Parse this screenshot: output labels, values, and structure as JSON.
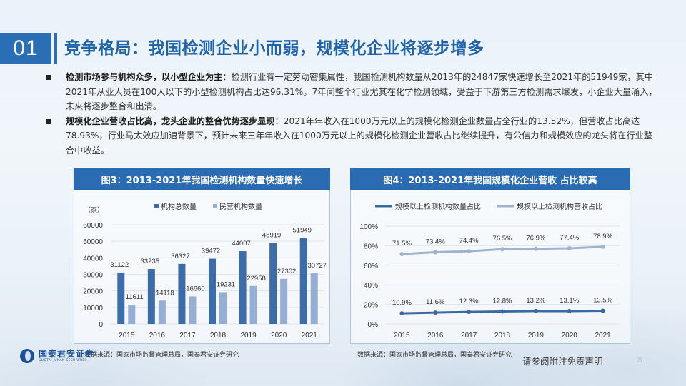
{
  "header": {
    "section_number": "01",
    "title": "竞争格局：我国检测企业小而弱，规模化企业将逐步增多"
  },
  "bullets": [
    {
      "bold": "检测市场参与机构众多，以小型企业为主",
      "text": "：检测行业有一定劳动密集属性，我国检测机构数量从2013年的24847家快速增长至2021年的51949家，其中2021年从业人员在100人以下的小型检测机构占比达96.31%。7年间整个行业尤其在化学检测领域，受益于下游第三方检测需求爆发，小企业大量涌入，未来将逐步整合和出清。"
    },
    {
      "bold": "规模化企业营收占比高，龙头企业的整合优势逐步显现",
      "text": "：2021年年收入在1000万元以上的规模化检测企业数量占全行业的13.52%，但营收占比高达78.93%，行业马太效应加速背景下，预计未来三年年收入在1000万元以上的规模化检测企业营收占比继续提升，有公信力和规模效应的龙头将在行业整合中收益。"
    }
  ],
  "chart_data": [
    {
      "type": "bar",
      "title": "图3：2013-2021年我国检测机构数量快速增长",
      "xlabel": "",
      "ylabel": "（家）",
      "categories": [
        "2015",
        "2016",
        "2017",
        "2018",
        "2019",
        "2020",
        "2021"
      ],
      "series": [
        {
          "name": "机构总数量",
          "color": "#3d6da8",
          "values": [
            31122,
            33235,
            36327,
            39472,
            44007,
            48919,
            51949
          ]
        },
        {
          "name": "民营机构数量",
          "color": "#95aed3",
          "values": [
            11611,
            14118,
            16660,
            19231,
            22958,
            27302,
            30727
          ]
        }
      ],
      "ylim": [
        0,
        60000
      ],
      "yticks": [
        "0",
        "10000",
        "20000",
        "30000",
        "40000",
        "50000",
        "60000"
      ],
      "legend_position": "top",
      "grid": true,
      "source": "数据来源：国家市场监督管理总局，国泰君安证券研究"
    },
    {
      "type": "line",
      "title": "图4：2013-2021年我国规模化企业营收 占比较高",
      "xlabel": "",
      "ylabel": "",
      "categories": [
        "2015",
        "2016",
        "2017",
        "2018",
        "2019",
        "2020",
        "2021"
      ],
      "series": [
        {
          "name": "规模以上检测机构数量占比",
          "color": "#3b6aa3",
          "values": [
            10.9,
            11.6,
            12.3,
            12.8,
            13.2,
            13.1,
            13.5
          ],
          "labels": [
            "10.9%",
            "11.6%",
            "12.3%",
            "12.8%",
            "13.2%",
            "13.1%",
            "13.5%"
          ]
        },
        {
          "name": "规模以上检测机构营收占比",
          "color": "#9fb3cf",
          "values": [
            71.5,
            73.4,
            74.4,
            76.5,
            76.9,
            77.4,
            78.9
          ],
          "labels": [
            "71.5%",
            "73.4%",
            "74.4%",
            "76.5%",
            "76.9%",
            "77.4%",
            "78.9%"
          ]
        }
      ],
      "ylim": [
        0,
        100
      ],
      "yticks": [
        "0%",
        "20%",
        "40%",
        "60%",
        "80%",
        "100%"
      ],
      "legend_position": "top",
      "grid": true,
      "source": "数据来源：国家市场监督管理总局，国泰君安证券研究"
    }
  ],
  "footer": {
    "logo_cn": "国泰君安证券",
    "logo_en": "GUOTAI JUNAN SECURITIES",
    "disclaimer": "请参阅附注免责声明",
    "page_number": "8"
  }
}
